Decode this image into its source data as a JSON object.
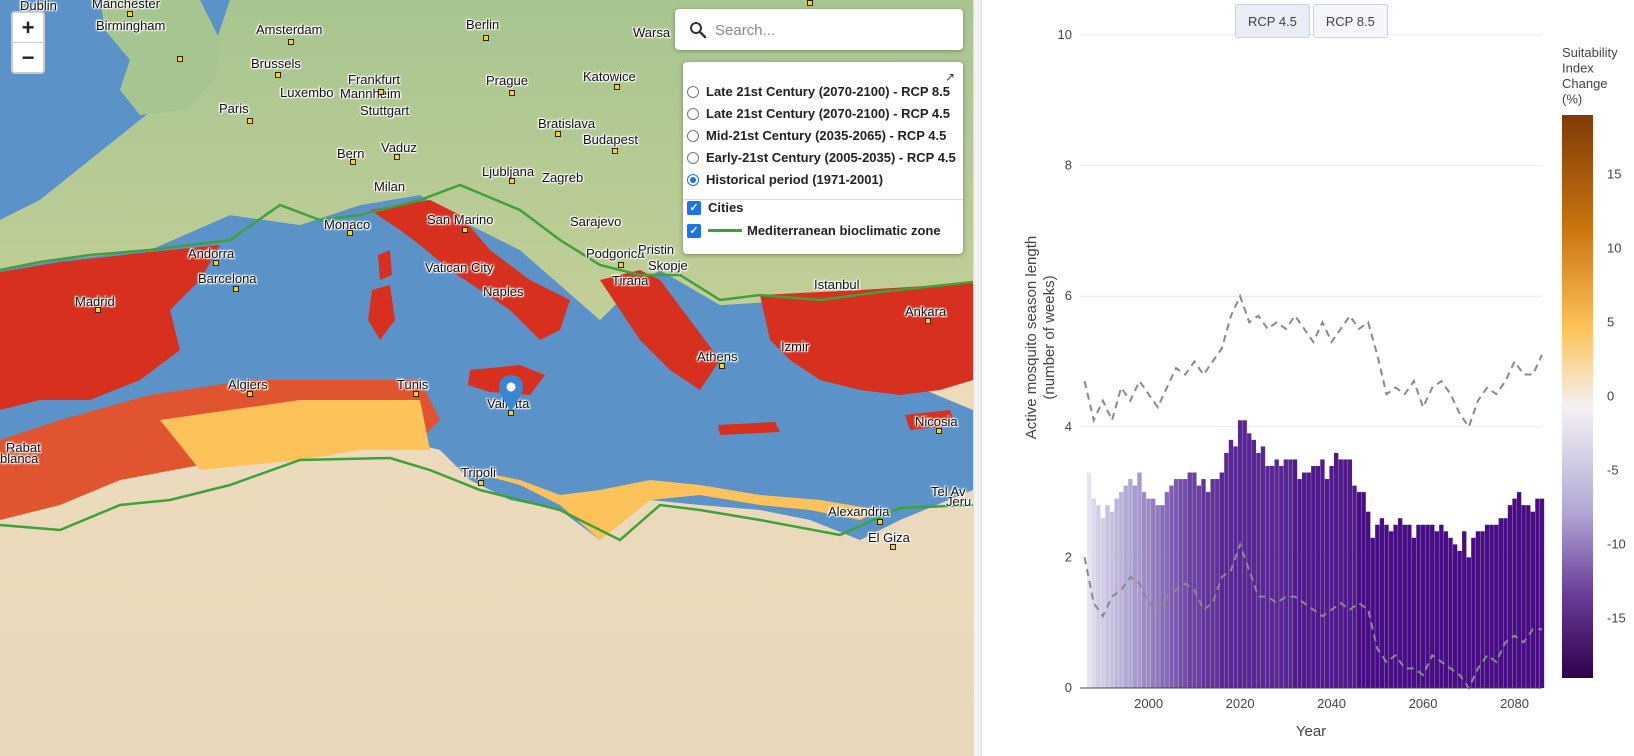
{
  "map": {
    "search": {
      "placeholder": "Search..."
    },
    "zoom": {
      "in_label": "+",
      "out_label": "−"
    },
    "layers": {
      "periods": [
        {
          "label": "Late 21st Century (2070-2100) - RCP 8.5",
          "selected": false
        },
        {
          "label": "Late 21st Century (2070-2100) - RCP 4.5",
          "selected": false
        },
        {
          "label": "Mid-21st Century (2035-2065) - RCP 4.5",
          "selected": false
        },
        {
          "label": "Early-21st Century (2005-2035) - RCP 4.5",
          "selected": false
        },
        {
          "label": "Historical period (1971-2001)",
          "selected": true
        }
      ],
      "overlays": [
        {
          "label": "Cities",
          "checked": true
        },
        {
          "label": "Mediterranean bioclimatic zone",
          "checked": true
        }
      ]
    },
    "cities": [
      "Dublin",
      "Manchester",
      "Birmingham",
      "Amsterdam",
      "Berlin",
      "Warsa",
      "Brussels",
      "Frankfurt",
      "Prague",
      "Katowice",
      "Luxembo",
      "Mannheim",
      "Paris",
      "Stuttgart",
      "Bratislava",
      "Budapest",
      "Bern",
      "Vaduz",
      "Ljubljana",
      "Zagreb",
      "Milan",
      "Monaco",
      "San Marino",
      "Sarajevo",
      "Andorra",
      "Podgorica",
      "Pristin",
      "Barcelona",
      "Vatican City",
      "Skopje",
      "Tirana",
      "Istanbul",
      "Ankara",
      "Madrid",
      "Naples",
      "Izmir",
      "Athens",
      "Algiers",
      "Tunis",
      "Valletta",
      "Nicosia",
      "Rabat",
      "blanca",
      "Tripoli",
      "Tel Av",
      "Jeru",
      "Alexandria",
      "El Giza"
    ],
    "colors": {
      "sea": "#5b93c9",
      "land_north": "#a9c492",
      "desert": "#e9dcc0",
      "suitable_high": "#d7301f",
      "suitable_mid": "#fc8d59",
      "suitable_low": "#fdc35a",
      "zone_line": "#3ea13a"
    }
  },
  "chart": {
    "buttons": [
      {
        "label": "RCP 4.5",
        "active": true
      },
      {
        "label": "RCP 8.5",
        "active": false
      }
    ],
    "colorbar": {
      "title_lines": [
        "Suitability",
        "Index",
        "Change",
        "(%)"
      ],
      "ticks": [
        15,
        10,
        5,
        0,
        -5,
        -10,
        -15
      ]
    }
  },
  "chart_data": {
    "type": "bar",
    "xlabel": "Year",
    "ylabel": "Active mosquito season length (number of weeks)",
    "ylim": [
      0,
      10
    ],
    "xlim": [
      1985,
      2086
    ],
    "x_ticks": [
      2000,
      2020,
      2040,
      2060,
      2080
    ],
    "y_ticks": [
      0,
      2,
      4,
      6,
      8,
      10
    ],
    "grid": true,
    "years": [
      1987,
      1988,
      1989,
      1990,
      1991,
      1992,
      1993,
      1994,
      1995,
      1996,
      1997,
      1998,
      1999,
      2000,
      2001,
      2002,
      2003,
      2004,
      2005,
      2006,
      2007,
      2008,
      2009,
      2010,
      2011,
      2012,
      2013,
      2014,
      2015,
      2016,
      2017,
      2018,
      2019,
      2020,
      2021,
      2022,
      2023,
      2024,
      2025,
      2026,
      2027,
      2028,
      2029,
      2030,
      2031,
      2032,
      2033,
      2034,
      2035,
      2036,
      2037,
      2038,
      2039,
      2040,
      2041,
      2042,
      2043,
      2044,
      2045,
      2046,
      2047,
      2048,
      2049,
      2050,
      2051,
      2052,
      2053,
      2054,
      2055,
      2056,
      2057,
      2058,
      2059,
      2060,
      2061,
      2062,
      2063,
      2064,
      2065,
      2066,
      2067,
      2068,
      2069,
      2070,
      2071,
      2072,
      2073,
      2074,
      2075,
      2076,
      2077,
      2078,
      2079,
      2080,
      2081,
      2082,
      2083,
      2084,
      2085,
      2086
    ],
    "season_length": [
      3.3,
      2.9,
      2.8,
      2.6,
      2.8,
      2.7,
      2.9,
      3.0,
      3.1,
      3.2,
      3.1,
      3.3,
      3.0,
      2.9,
      2.9,
      2.8,
      2.8,
      3.0,
      3.1,
      3.2,
      3.2,
      3.2,
      3.3,
      3.3,
      3.1,
      3.2,
      3.0,
      3.2,
      3.2,
      3.3,
      3.6,
      3.8,
      3.7,
      4.1,
      4.1,
      3.9,
      3.8,
      3.6,
      3.7,
      3.4,
      3.4,
      3.5,
      3.4,
      3.5,
      3.5,
      3.5,
      3.2,
      3.3,
      3.3,
      3.4,
      3.4,
      3.5,
      3.2,
      3.4,
      3.6,
      3.5,
      3.5,
      3.5,
      3.1,
      3.0,
      3.0,
      2.7,
      2.3,
      2.5,
      2.6,
      2.5,
      2.4,
      2.5,
      2.6,
      2.5,
      2.5,
      2.3,
      2.5,
      2.5,
      2.5,
      2.5,
      2.4,
      2.5,
      2.4,
      2.3,
      2.2,
      2.1,
      2.4,
      2.0,
      2.3,
      2.4,
      2.4,
      2.5,
      2.5,
      2.5,
      2.6,
      2.6,
      2.8,
      2.9,
      3.0,
      2.8,
      2.8,
      2.7,
      2.9,
      2.9
    ],
    "suitability_change": [
      -1,
      -2,
      -3,
      -3,
      -4,
      -4,
      -5,
      -5,
      -6,
      -6,
      -7,
      -7,
      -8,
      -8,
      -9,
      -9,
      -10,
      -10,
      -11,
      -11,
      -12,
      -12,
      -13,
      -13,
      -13,
      -14,
      -14,
      -14,
      -14,
      -15,
      -15,
      -15,
      -15,
      -15,
      -15,
      -15,
      -15,
      -15,
      -15,
      -15,
      -15,
      -15,
      -15,
      -15,
      -15,
      -16,
      -16,
      -16,
      -16,
      -16,
      -16,
      -16,
      -16,
      -16,
      -16,
      -16,
      -16,
      -16,
      -16,
      -17,
      -17,
      -17,
      -17,
      -17,
      -17,
      -17,
      -17,
      -17,
      -17,
      -17,
      -17,
      -17,
      -17,
      -17,
      -17,
      -17,
      -17,
      -17,
      -17,
      -17,
      -17,
      -17,
      -17,
      -17,
      -17,
      -17,
      -17,
      -17,
      -17,
      -17,
      -17,
      -17,
      -17,
      -17,
      -17,
      -17,
      -17,
      -17,
      -17,
      -17
    ],
    "upper_dash": [
      [
        1986,
        4.7
      ],
      [
        1988,
        4.1
      ],
      [
        1990,
        4.4
      ],
      [
        1992,
        4.1
      ],
      [
        1994,
        4.6
      ],
      [
        1996,
        4.4
      ],
      [
        1998,
        4.7
      ],
      [
        2000,
        4.5
      ],
      [
        2002,
        4.3
      ],
      [
        2004,
        4.6
      ],
      [
        2006,
        4.9
      ],
      [
        2008,
        4.8
      ],
      [
        2010,
        5.0
      ],
      [
        2012,
        4.8
      ],
      [
        2014,
        5.0
      ],
      [
        2016,
        5.2
      ],
      [
        2018,
        5.7
      ],
      [
        2020,
        6.0
      ],
      [
        2022,
        5.6
      ],
      [
        2024,
        5.7
      ],
      [
        2026,
        5.5
      ],
      [
        2028,
        5.6
      ],
      [
        2030,
        5.5
      ],
      [
        2032,
        5.7
      ],
      [
        2034,
        5.5
      ],
      [
        2036,
        5.3
      ],
      [
        2038,
        5.6
      ],
      [
        2040,
        5.3
      ],
      [
        2042,
        5.5
      ],
      [
        2044,
        5.7
      ],
      [
        2046,
        5.5
      ],
      [
        2048,
        5.6
      ],
      [
        2050,
        5.1
      ],
      [
        2052,
        4.5
      ],
      [
        2054,
        4.6
      ],
      [
        2056,
        4.5
      ],
      [
        2058,
        4.7
      ],
      [
        2060,
        4.3
      ],
      [
        2062,
        4.6
      ],
      [
        2064,
        4.7
      ],
      [
        2066,
        4.5
      ],
      [
        2068,
        4.2
      ],
      [
        2070,
        4.0
      ],
      [
        2072,
        4.4
      ],
      [
        2074,
        4.6
      ],
      [
        2076,
        4.5
      ],
      [
        2078,
        4.7
      ],
      [
        2080,
        5.0
      ],
      [
        2082,
        4.8
      ],
      [
        2084,
        4.8
      ],
      [
        2086,
        5.1
      ]
    ],
    "lower_dash": [
      [
        1986,
        2.0
      ],
      [
        1988,
        1.3
      ],
      [
        1990,
        1.1
      ],
      [
        1992,
        1.4
      ],
      [
        1994,
        1.5
      ],
      [
        1996,
        1.7
      ],
      [
        1998,
        1.6
      ],
      [
        2000,
        1.3
      ],
      [
        2002,
        1.2
      ],
      [
        2004,
        1.4
      ],
      [
        2006,
        1.5
      ],
      [
        2008,
        1.6
      ],
      [
        2010,
        1.5
      ],
      [
        2012,
        1.2
      ],
      [
        2014,
        1.3
      ],
      [
        2016,
        1.7
      ],
      [
        2018,
        1.8
      ],
      [
        2020,
        2.2
      ],
      [
        2022,
        1.8
      ],
      [
        2024,
        1.4
      ],
      [
        2026,
        1.4
      ],
      [
        2028,
        1.3
      ],
      [
        2030,
        1.4
      ],
      [
        2032,
        1.4
      ],
      [
        2034,
        1.3
      ],
      [
        2036,
        1.2
      ],
      [
        2038,
        1.1
      ],
      [
        2040,
        1.2
      ],
      [
        2042,
        1.3
      ],
      [
        2044,
        1.2
      ],
      [
        2046,
        1.3
      ],
      [
        2048,
        1.2
      ],
      [
        2050,
        0.6
      ],
      [
        2052,
        0.4
      ],
      [
        2054,
        0.5
      ],
      [
        2056,
        0.3
      ],
      [
        2058,
        0.3
      ],
      [
        2060,
        0.2
      ],
      [
        2062,
        0.5
      ],
      [
        2064,
        0.4
      ],
      [
        2066,
        0.3
      ],
      [
        2068,
        0.2
      ],
      [
        2070,
        0.0
      ],
      [
        2072,
        0.3
      ],
      [
        2074,
        0.5
      ],
      [
        2076,
        0.4
      ],
      [
        2078,
        0.7
      ],
      [
        2080,
        0.8
      ],
      [
        2082,
        0.7
      ],
      [
        2084,
        0.9
      ],
      [
        2086,
        0.9
      ]
    ]
  }
}
